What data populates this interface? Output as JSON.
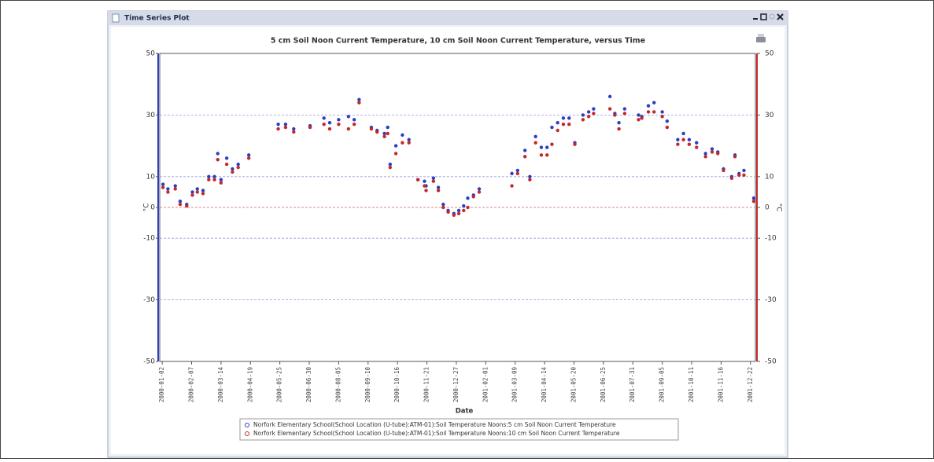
{
  "window": {
    "title": "Time Series Plot"
  },
  "chart_data": {
    "type": "scatter",
    "title": "5 cm Soil Noon Current Temperature, 10 cm Soil Noon Current Temperature, versus Time",
    "x_label": "Date",
    "y_label": "°C",
    "y2_label": "°C",
    "x": [
      "2000-01-03",
      "2000-01-09",
      "2000-01-18",
      "2000-01-24",
      "2000-02-01",
      "2000-02-08",
      "2000-02-14",
      "2000-02-21",
      "2000-02-28",
      "2000-03-06",
      "2000-03-10",
      "2000-03-14",
      "2000-03-21",
      "2000-03-28",
      "2000-04-04",
      "2000-04-17",
      "2000-05-23",
      "2000-06-01",
      "2000-06-11",
      "2000-07-01",
      "2000-07-18",
      "2000-07-25",
      "2000-08-05",
      "2000-08-17",
      "2000-08-24",
      "2000-08-30",
      "2000-09-14",
      "2000-09-21",
      "2000-09-30",
      "2000-10-04",
      "2000-10-07",
      "2000-10-14",
      "2000-10-22",
      "2000-10-30",
      "2000-11-10",
      "2000-11-18",
      "2000-11-20",
      "2000-11-29",
      "2000-12-05",
      "2000-12-11",
      "2000-12-17",
      "2000-12-24",
      "2000-12-30",
      "2001-01-05",
      "2001-01-10",
      "2001-01-17",
      "2001-01-24",
      "2001-03-05",
      "2001-03-12",
      "2001-03-21",
      "2001-03-27",
      "2001-04-03",
      "2001-04-10",
      "2001-04-17",
      "2001-04-23",
      "2001-04-30",
      "2001-05-07",
      "2001-05-14",
      "2001-05-21",
      "2001-05-31",
      "2001-06-07",
      "2001-06-13",
      "2001-07-03",
      "2001-07-09",
      "2001-07-14",
      "2001-07-21",
      "2001-08-07",
      "2001-08-11",
      "2001-08-19",
      "2001-08-26",
      "2001-09-05",
      "2001-09-11",
      "2001-09-24",
      "2001-10-01",
      "2001-10-08",
      "2001-10-17",
      "2001-10-28",
      "2001-11-05",
      "2001-11-12",
      "2001-11-19",
      "2001-11-29",
      "2001-12-03",
      "2001-12-08",
      "2001-12-14",
      "2001-12-26"
    ],
    "series": [
      {
        "name": "Norfork Elementary School(School Location (U-tube):ATM-01):Soil Temperature Noons:5 cm Soil Noon Current Temperature",
        "color": "#2b3fc4",
        "values": [
          7.5,
          6,
          7,
          2,
          1,
          5,
          6,
          5.5,
          10,
          10,
          17.5,
          9,
          16,
          12.5,
          14,
          17,
          27,
          27,
          25.5,
          26.5,
          29,
          27.5,
          28.5,
          29.5,
          28.5,
          35,
          26,
          25,
          24,
          26,
          14,
          20,
          23.5,
          22,
          9,
          8.5,
          7,
          9.5,
          6.5,
          1,
          -1,
          -2,
          -1,
          0.5,
          3,
          4,
          6,
          11,
          12,
          18.5,
          10,
          23,
          19.5,
          19.5,
          26,
          27.5,
          29,
          29,
          21,
          30,
          31,
          32,
          36,
          30.5,
          27.5,
          32,
          30,
          29.5,
          33,
          34,
          31,
          28,
          22,
          24,
          22,
          21,
          17.5,
          19,
          18,
          12.5,
          10,
          17,
          11,
          12,
          3
        ]
      },
      {
        "name": "Norfork Elementary School(School Location (U-tube):ATM-01):Soil Temperature Noons:10 cm Soil Noon Current Temperature",
        "color": "#c4282a",
        "values": [
          6.5,
          5,
          6,
          1,
          0.5,
          4,
          5,
          4.5,
          9,
          9,
          15.5,
          8,
          14,
          11.5,
          13,
          16,
          25.5,
          26,
          24.5,
          26,
          27,
          25.5,
          27,
          25.5,
          27,
          34,
          25.5,
          24.5,
          23,
          24,
          13,
          17.5,
          21,
          21,
          9,
          7,
          5.5,
          8.5,
          5.5,
          0,
          -1.5,
          -2.5,
          -2,
          -1,
          0,
          3.5,
          5,
          7,
          11,
          16.5,
          9,
          21,
          17,
          17,
          20.5,
          25,
          27,
          27,
          20.5,
          28.5,
          29.5,
          30.5,
          32,
          30,
          25.5,
          30.5,
          28.5,
          29,
          31,
          31,
          29.5,
          26,
          20.5,
          22,
          20.5,
          19.5,
          16.5,
          18,
          17.5,
          12,
          9.5,
          16.5,
          10.5,
          10.5,
          2
        ]
      }
    ],
    "xlim": [
      "1999-12-30",
      "2001-12-28"
    ],
    "xticks": [
      "2000-01-02",
      "2000-02-07",
      "2000-03-14",
      "2000-04-19",
      "2000-05-25",
      "2000-06-30",
      "2000-08-05",
      "2000-09-10",
      "2000-10-16",
      "2000-11-21",
      "2000-12-27",
      "2001-02-01",
      "2001-03-09",
      "2001-04-14",
      "2001-05-20",
      "2001-06-25",
      "2001-07-31",
      "2001-09-05",
      "2001-10-11",
      "2001-11-16",
      "2001-12-22"
    ],
    "ylim": [
      -50,
      50
    ],
    "yticks": [
      50,
      30,
      10,
      0,
      -10,
      -30,
      -50
    ],
    "y2lim": [
      -50,
      50
    ],
    "y2ticks": [
      50,
      30,
      10,
      0,
      -10,
      -30,
      -50
    ],
    "grid": true,
    "legend": "bottom"
  }
}
